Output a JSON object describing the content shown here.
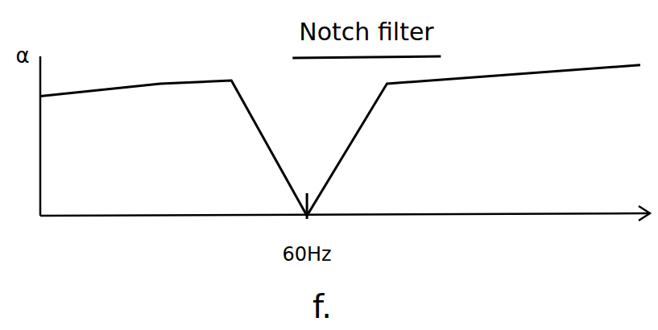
{
  "chart_data": {
    "type": "line",
    "title": "Notch filter",
    "y_label": "α",
    "x_label": "f.",
    "x": [
      0,
      27,
      43,
      60,
      78,
      135
    ],
    "values": [
      0.77,
      0.85,
      0.87,
      0,
      0.85,
      0.97
    ],
    "color": "#000000",
    "xlim": [
      0,
      135
    ],
    "ylim": [
      0,
      1
    ],
    "xticks": [
      {
        "value": 60,
        "label": "60Hz"
      }
    ],
    "tick_labels": "x",
    "grid": false
  }
}
